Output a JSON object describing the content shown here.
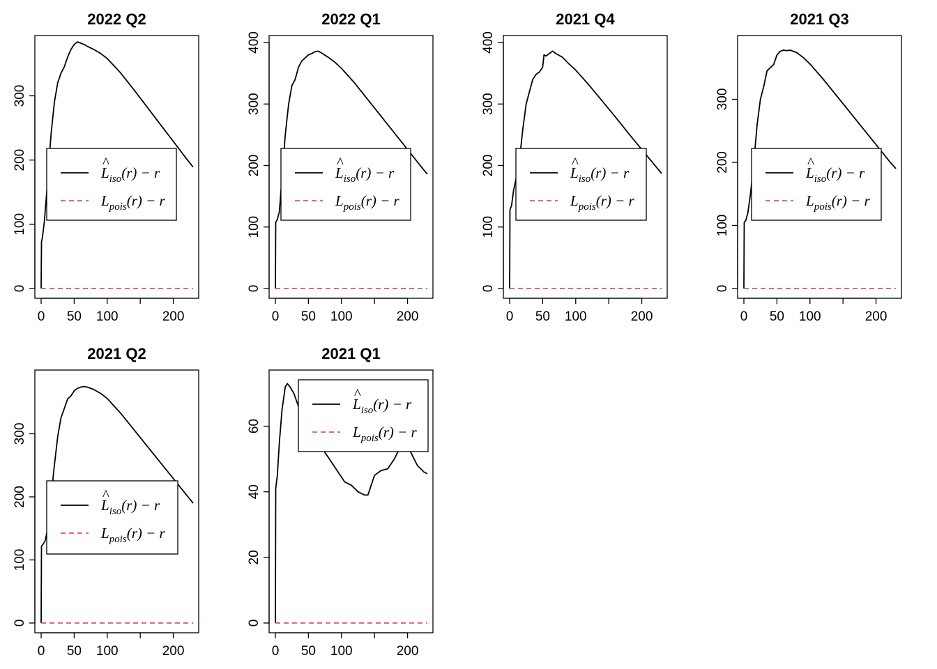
{
  "chart_data": [
    {
      "type": "line",
      "title": "2022 Q2",
      "xlim": [
        0,
        230
      ],
      "ylim": [
        0,
        383
      ],
      "x_ticks": [
        0,
        50,
        100,
        200
      ],
      "y_ticks": [
        0,
        100,
        200,
        300
      ],
      "legend": {
        "placement": "center-left",
        "entries": [
          {
            "main": "L",
            "hat": "^",
            "sub": "iso",
            "tail": "(r) − r",
            "color": "#000000",
            "dash": "solid"
          },
          {
            "main": "L",
            "sub": "pois",
            "tail": "(r) − r",
            "color": "#DF536B",
            "dash": "dashed"
          }
        ]
      },
      "series": [
        {
          "color": "#000000",
          "dash": "solid",
          "x": [
            0,
            0.5,
            2,
            5,
            10,
            15,
            20,
            25,
            30,
            35,
            40,
            45,
            50,
            55,
            60,
            65,
            70,
            80,
            90,
            100,
            120,
            140,
            160,
            180,
            200,
            220,
            230
          ],
          "y": [
            0,
            72,
            80,
            105,
            170,
            240,
            290,
            320,
            335,
            345,
            360,
            372,
            380,
            384,
            382,
            380,
            377,
            372,
            366,
            358,
            336,
            310,
            283,
            256,
            229,
            202,
            189
          ]
        },
        {
          "color": "#DF536B",
          "dash": "dashed",
          "x": [
            0,
            230
          ],
          "y": [
            0,
            0
          ]
        }
      ]
    },
    {
      "type": "line",
      "title": "2022 Q1",
      "xlim": [
        0,
        230
      ],
      "ylim": [
        0,
        400
      ],
      "x_ticks": [
        0,
        50,
        100,
        200
      ],
      "y_ticks": [
        0,
        100,
        200,
        300,
        400
      ],
      "legend": {
        "placement": "center-left",
        "entries": [
          {
            "main": "L",
            "hat": "^",
            "sub": "iso",
            "tail": "(r) − r",
            "color": "#000000",
            "dash": "solid"
          },
          {
            "main": "L",
            "sub": "pois",
            "tail": "(r) − r",
            "color": "#DF536B",
            "dash": "dashed"
          }
        ]
      },
      "series": [
        {
          "color": "#000000",
          "dash": "solid",
          "x": [
            0,
            0.5,
            3,
            6,
            10,
            15,
            20,
            25,
            30,
            35,
            40,
            45,
            50,
            55,
            60,
            65,
            70,
            80,
            90,
            100,
            120,
            140,
            160,
            180,
            200,
            220,
            230
          ],
          "y": [
            0,
            108,
            112,
            125,
            180,
            250,
            300,
            330,
            340,
            360,
            370,
            375,
            380,
            382,
            385,
            386,
            383,
            376,
            368,
            358,
            334,
            307,
            280,
            253,
            226,
            199,
            186
          ]
        },
        {
          "color": "#DF536B",
          "dash": "dashed",
          "x": [
            0,
            230
          ],
          "y": [
            0,
            0
          ]
        }
      ]
    },
    {
      "type": "line",
      "title": "2021 Q4",
      "xlim": [
        0,
        230
      ],
      "ylim": [
        0,
        400
      ],
      "x_ticks": [
        0,
        50,
        100,
        200
      ],
      "y_ticks": [
        0,
        100,
        200,
        300,
        400
      ],
      "legend": {
        "placement": "center-left",
        "entries": [
          {
            "main": "L",
            "hat": "^",
            "sub": "iso",
            "tail": "(r) − r",
            "color": "#000000",
            "dash": "solid"
          },
          {
            "main": "L",
            "sub": "pois",
            "tail": "(r) − r",
            "color": "#DF536B",
            "dash": "dashed"
          }
        ]
      },
      "series": [
        {
          "color": "#000000",
          "dash": "solid",
          "x": [
            0,
            0.5,
            3,
            6,
            10,
            15,
            20,
            25,
            30,
            35,
            40,
            45,
            50,
            52,
            55,
            60,
            65,
            70,
            80,
            90,
            100,
            120,
            140,
            160,
            180,
            200,
            220,
            230
          ],
          "y": [
            0,
            128,
            135,
            160,
            180,
            210,
            260,
            300,
            320,
            340,
            348,
            352,
            360,
            380,
            378,
            382,
            386,
            382,
            376,
            365,
            355,
            331,
            305,
            279,
            252,
            226,
            200,
            187
          ]
        },
        {
          "color": "#DF536B",
          "dash": "dashed",
          "x": [
            0,
            230
          ],
          "y": [
            0,
            0
          ]
        }
      ]
    },
    {
      "type": "line",
      "title": "2021 Q3",
      "xlim": [
        0,
        230
      ],
      "ylim": [
        0,
        390
      ],
      "x_ticks": [
        0,
        50,
        100,
        200
      ],
      "y_ticks": [
        0,
        100,
        200,
        300
      ],
      "legend": {
        "placement": "center-left",
        "entries": [
          {
            "main": "L",
            "hat": "^",
            "sub": "iso",
            "tail": "(r) − r",
            "color": "#000000",
            "dash": "solid"
          },
          {
            "main": "L",
            "sub": "pois",
            "tail": "(r) − r",
            "color": "#DF536B",
            "dash": "dashed"
          }
        ]
      },
      "series": [
        {
          "color": "#000000",
          "dash": "solid",
          "x": [
            0,
            0.5,
            3,
            6,
            10,
            15,
            20,
            25,
            30,
            35,
            40,
            45,
            50,
            55,
            60,
            65,
            70,
            80,
            90,
            100,
            120,
            140,
            160,
            180,
            200,
            220,
            230
          ],
          "y": [
            0,
            105,
            108,
            120,
            150,
            200,
            260,
            300,
            320,
            345,
            350,
            355,
            370,
            376,
            378,
            377,
            378,
            374,
            366,
            356,
            332,
            306,
            280,
            254,
            228,
            202,
            190
          ]
        },
        {
          "color": "#DF536B",
          "dash": "dashed",
          "x": [
            0,
            230
          ],
          "y": [
            0,
            0
          ]
        }
      ]
    },
    {
      "type": "line",
      "title": "2021 Q2",
      "xlim": [
        0,
        230
      ],
      "ylim": [
        0,
        390
      ],
      "x_ticks": [
        0,
        50,
        100,
        200
      ],
      "y_ticks": [
        0,
        100,
        200,
        300
      ],
      "legend": {
        "placement": "center-left",
        "entries": [
          {
            "main": "L",
            "hat": "^",
            "sub": "iso",
            "tail": "(r) − r",
            "color": "#000000",
            "dash": "solid"
          },
          {
            "main": "L",
            "sub": "pois",
            "tail": "(r) − r",
            "color": "#DF536B",
            "dash": "dashed"
          }
        ]
      },
      "series": [
        {
          "color": "#000000",
          "dash": "solid",
          "x": [
            0,
            0.5,
            3,
            6,
            10,
            15,
            20,
            25,
            30,
            35,
            40,
            45,
            50,
            55,
            60,
            65,
            70,
            80,
            90,
            100,
            120,
            140,
            160,
            180,
            200,
            220,
            230
          ],
          "y": [
            0,
            122,
            125,
            130,
            150,
            200,
            250,
            295,
            325,
            340,
            355,
            360,
            368,
            372,
            374,
            375,
            374,
            370,
            364,
            356,
            333,
            307,
            281,
            255,
            229,
            203,
            190
          ]
        },
        {
          "color": "#DF536B",
          "dash": "dashed",
          "x": [
            0,
            230
          ],
          "y": [
            0,
            0
          ]
        }
      ]
    },
    {
      "type": "line",
      "title": "2021 Q1",
      "xlim": [
        0,
        230
      ],
      "ylim": [
        0,
        75
      ],
      "x_ticks": [
        0,
        50,
        100,
        200
      ],
      "y_ticks": [
        0,
        20,
        40,
        60
      ],
      "legend": {
        "placement": "top-right",
        "entries": [
          {
            "main": "L",
            "hat": "^",
            "sub": "iso",
            "tail": "(r) − r",
            "color": "#000000",
            "dash": "solid"
          },
          {
            "main": "L",
            "sub": "pois",
            "tail": "(r) − r",
            "color": "#DF536B",
            "dash": "dashed"
          }
        ]
      },
      "series": [
        {
          "color": "#000000",
          "dash": "solid",
          "x": [
            0,
            0.5,
            3,
            6,
            10,
            15,
            18,
            22,
            28,
            35,
            45,
            55,
            65,
            75,
            85,
            95,
            105,
            115,
            125,
            130,
            135,
            140,
            145,
            150,
            160,
            170,
            180,
            190,
            195,
            200,
            205,
            210,
            215,
            220,
            225,
            230
          ],
          "y": [
            0,
            41,
            45,
            55,
            65,
            72,
            73,
            72,
            70,
            66,
            61,
            57,
            55,
            52,
            49,
            46,
            43,
            42,
            40,
            39.5,
            39,
            39,
            42,
            45,
            46.5,
            47,
            50,
            54,
            56,
            55,
            52,
            50,
            48,
            47,
            46,
            45.5
          ]
        },
        {
          "color": "#DF536B",
          "dash": "dashed",
          "x": [
            0,
            230
          ],
          "y": [
            0,
            0
          ]
        }
      ]
    }
  ]
}
